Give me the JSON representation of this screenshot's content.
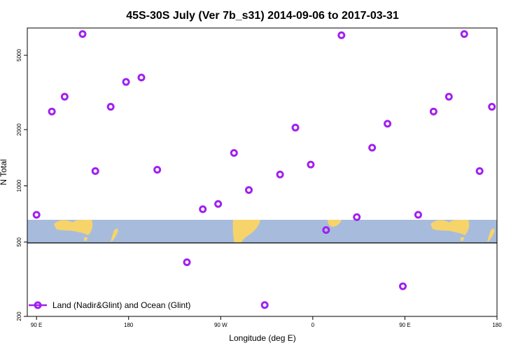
{
  "chart_data": {
    "type": "scatter",
    "title": "45S-30S July (Ver 7b_s31)   2014-09-06 to 2017-03-31",
    "xlabel": "Longitude (deg E)",
    "ylabel": "N Total",
    "x_tick_labels": [
      "90 E",
      "180",
      "90 W",
      "0",
      "90 E",
      "180"
    ],
    "x_tick_values": [
      90,
      180,
      270,
      360,
      450,
      540
    ],
    "xlim": [
      81,
      540
    ],
    "y_scale": "log",
    "ylim": [
      200,
      7000
    ],
    "y_tick_labels": [
      "200",
      "500",
      "1000",
      "2000",
      "5000"
    ],
    "y_tick_values": [
      200,
      500,
      1000,
      2000,
      5000
    ],
    "grid": false,
    "legend_position": "bottom-left",
    "marker_color": "#a020f0",
    "series": [
      {
        "name": "Land (Nadir&Glint) and Ocean (Glint)",
        "x": [
          90,
          105,
          117.5,
          135,
          147.5,
          162.5,
          177.5,
          192.5,
          208,
          237,
          252.5,
          267.5,
          283,
          297.5,
          313,
          328,
          343,
          358,
          373,
          388,
          403,
          418,
          433,
          448,
          463,
          478,
          493,
          508,
          523,
          535
        ],
        "y": [
          700,
          2500,
          3000,
          6500,
          1200,
          2650,
          3600,
          3800,
          1220,
          390,
          750,
          800,
          1500,
          950,
          230,
          1150,
          2050,
          1300,
          580,
          6400,
          680,
          1600,
          2150,
          290,
          700,
          2500,
          3000,
          6500,
          1200,
          2650
        ]
      }
    ]
  }
}
